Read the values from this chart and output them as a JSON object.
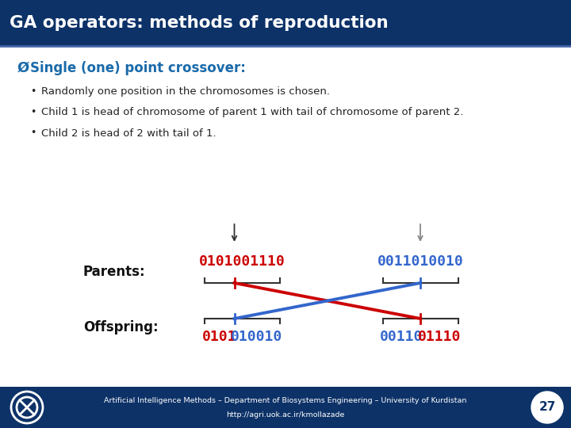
{
  "title": "GA operators: methods of reproduction",
  "title_bg": "#0d3268",
  "title_fg": "#ffffff",
  "slide_bg": "#ffffff",
  "header_text": "Single (one) point crossover:",
  "header_color": "#1a6aaa",
  "bullets": [
    "Randomly one position in the chromosomes is chosen.",
    "Child 1 is head of chromosome of parent 1 with tail of chromosome of parent 2.",
    "Child 2 is head of 2 with tail of 1."
  ],
  "bullet_color": "#222222",
  "parents_label": "Parents:",
  "offspring_label": "Offspring:",
  "label_color": "#111111",
  "parent1": "0101001110",
  "parent2": "0011010010",
  "offspring1": "0101010010",
  "offspring2": "0011001110",
  "red_color": "#cc0000",
  "blue_color": "#3366cc",
  "footer_bg": "#0d3268",
  "footer_text": "Artificial Intelligence Methods – Department of Biosystems Engineering – University of Kurdistan",
  "footer_url": "http://agri.uok.ac.ir/kmollazade",
  "footer_color": "#ffffff",
  "page_number": "27",
  "split1": 4,
  "split2": 5
}
